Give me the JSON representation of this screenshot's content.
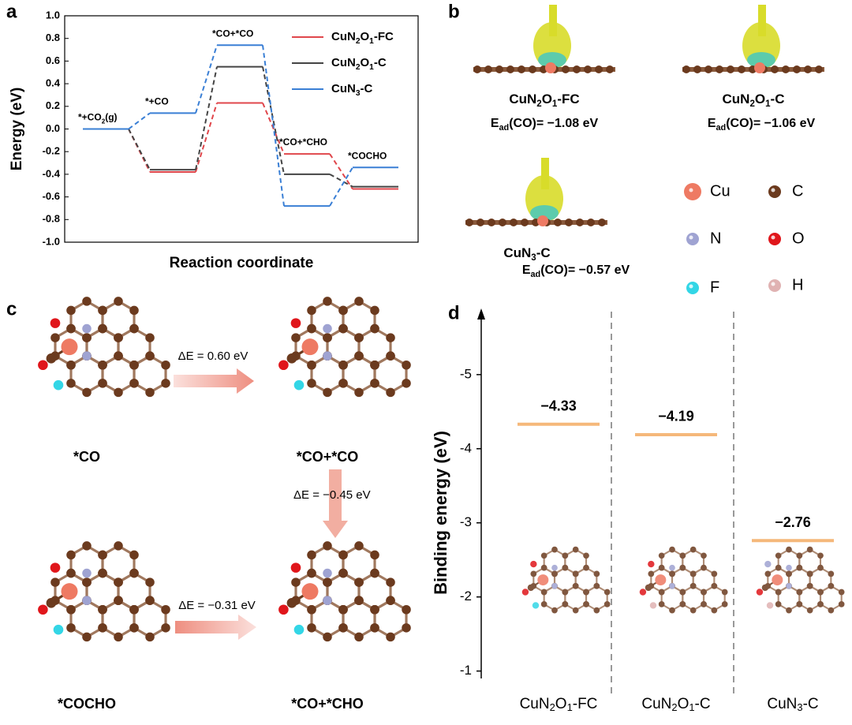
{
  "panel_labels": [
    "a",
    "b",
    "c",
    "d"
  ],
  "chart_data": [
    {
      "type": "energy-profile",
      "xlabel": "Reaction coordinate",
      "ylabel": "Energy (eV)",
      "categories": [
        "*+CO2(g)",
        "*+CO",
        "*CO+*CO",
        "*CO+*CHO",
        "*COCHO"
      ],
      "series": [
        {
          "name": "CuN2O1-FC",
          "color": "#e0474c",
          "values": [
            0,
            -0.38,
            0.23,
            -0.22,
            -0.53
          ]
        },
        {
          "name": "CuN2O1-C",
          "color": "#444444",
          "values": [
            0,
            -0.36,
            0.55,
            -0.4,
            -0.51
          ]
        },
        {
          "name": "CuN3-C",
          "color": "#3a7fd5",
          "values": [
            0,
            0.14,
            0.74,
            -0.68,
            -0.34
          ]
        }
      ],
      "ylim": [
        -1,
        1
      ],
      "yticks": [
        {
          "value": -1,
          "label": "-1.0"
        },
        -0.8,
        -0.6,
        -0.4,
        -0.2,
        {
          "value": 0,
          "label": "0.0"
        },
        0.2,
        0.4,
        0.6,
        0.8,
        {
          "value": 1,
          "label": "1.0"
        }
      ],
      "legend": "top-right"
    },
    {
      "type": "level",
      "ylabel": "Binding energy (eV)",
      "categories": [
        "CuN2O1-FC",
        "CuN2O1-C",
        "CuN3-C"
      ],
      "category_colors": [
        "#e5585c",
        "#8a8a8a",
        "#6fa0dc"
      ],
      "values": [
        -4.33,
        -4.19,
        -2.76
      ],
      "value_labels": [
        "−4.33",
        "−4.19",
        "−2.76"
      ],
      "color": "#f5b87a",
      "ylim": [
        -0.9,
        -5.85
      ],
      "yticks": [
        -5,
        -4,
        -3,
        -2,
        -1
      ]
    }
  ],
  "panel_b": {
    "structures": [
      {
        "name": "CuN2O1-FC",
        "color": "#e0474c",
        "energy": "Ead(CO)= −1.08 eV"
      },
      {
        "name": "CuN2O1-C",
        "color": "#8a8a8a",
        "energy": "Ead(CO)= −1.06 eV"
      },
      {
        "name": "CuN3-C",
        "color": "#6fa0dc",
        "energy": "Ead(CO)= −0.57 eV"
      }
    ],
    "atoms": [
      {
        "name": "Cu",
        "color": "#ee7a63"
      },
      {
        "name": "C",
        "color": "#6b3a1e"
      },
      {
        "name": "N",
        "color": "#9fa3d2"
      },
      {
        "name": "O",
        "color": "#e0161b"
      },
      {
        "name": "F",
        "color": "#33d6e6"
      },
      {
        "name": "H",
        "color": "#e0b2b2"
      }
    ]
  },
  "panel_c": {
    "states": [
      "*CO",
      "*CO+*CO",
      "*CO+*CHO",
      "*COCHO"
    ],
    "steps": [
      "ΔE = 0.60 eV",
      "ΔE = −0.45 eV",
      "ΔE = −0.31 eV"
    ]
  }
}
